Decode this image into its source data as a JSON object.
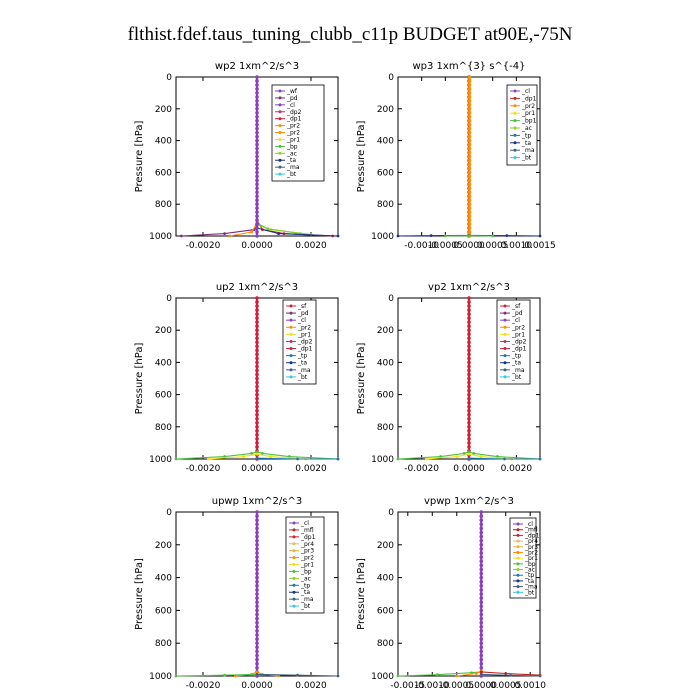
{
  "figure_title": "flthist.fdef.taus_tuning_clubb_c11p  BUDGET at90E,-75N",
  "colors": {
    "_wf": "#8a3fbf",
    "_pd": "#7a2f7a",
    "_cl": "#8a3fbf",
    "_dp2": "#c0306a",
    "_dp1": "#d0203a",
    "_pr2": "#ff8c00",
    "_pr1": "#f0e020",
    "_pr3": "#e8b040",
    "_pr4": "#e0c060",
    "_mfl": "#c02020",
    "_bp": "#50c040",
    "_bp1": "#50c040",
    "_ac": "#90d020",
    "_tp": "#1f77b4",
    "_ta": "#1a2f8a",
    "_ma": "#406080",
    "_bt": "#3ec6e0",
    "_sf": "#d02040"
  },
  "chart_data": [
    {
      "type": "line",
      "title": "wp2   1xm^2/s^3",
      "ylabel": "Pressure  [hPa]",
      "xlim": [
        -0.003,
        0.003
      ],
      "ylim": [
        1000,
        0
      ],
      "xticks": [
        "-0.0020",
        "0.0000",
        "0.0020"
      ],
      "xtick_values": [
        -0.002,
        0.0,
        0.002
      ],
      "yticks": [
        "0",
        "200",
        "400",
        "600",
        "800",
        "1000"
      ],
      "legend": [
        "_wf",
        "_pd",
        "_cl",
        "_dp2",
        "_dp1",
        "_pr2",
        "_pr2",
        "_pr1",
        "_bp",
        "_ac",
        "_ta",
        "_ma",
        "_bt"
      ],
      "series": [
        {
          "name": "_pd",
          "x": [
            0,
            0,
            -0.0001,
            -0.0012,
            -0.0028
          ],
          "y": [
            0,
            900,
            960,
            985,
            1000
          ]
        },
        {
          "name": "_dp1",
          "x": [
            0,
            0,
            0.0002,
            0.001,
            0.0028
          ],
          "y": [
            0,
            900,
            960,
            985,
            1000
          ]
        },
        {
          "name": "_pr2",
          "x": [
            0,
            0,
            -0.0002,
            -0.001
          ],
          "y": [
            0,
            920,
            975,
            1000
          ]
        },
        {
          "name": "_bp",
          "x": [
            0,
            0,
            0.0004,
            0.0016
          ],
          "y": [
            0,
            920,
            955,
            985
          ]
        },
        {
          "name": "_ac",
          "x": [
            0,
            0,
            0.0005,
            0.002
          ],
          "y": [
            0,
            930,
            960,
            990
          ]
        },
        {
          "name": "_ta",
          "x": [
            0,
            0,
            0.0008,
            0.003
          ],
          "y": [
            0,
            950,
            985,
            1000
          ]
        },
        {
          "name": "_cl",
          "x": [
            0,
            0,
            0,
            0
          ],
          "y": [
            0,
            500,
            950,
            1000
          ]
        }
      ]
    },
    {
      "type": "line",
      "title": "wp3   1xm^{3} s^{-4}",
      "ylabel": "Pressure  [hPa]",
      "xlim": [
        -0.0015,
        0.0015
      ],
      "ylim": [
        1000,
        0
      ],
      "xticks": [
        "-0.0010",
        "-0.0005",
        "0.0000",
        "0.0005",
        "0.0010",
        "0.0015"
      ],
      "xtick_values": [
        -0.001,
        -0.0005,
        0.0,
        0.0005,
        0.001,
        0.0015
      ],
      "yticks": [
        "0",
        "200",
        "400",
        "600",
        "800",
        "1000"
      ],
      "legend": [
        "_cl",
        "_dp1",
        "_pr2",
        "_pr1",
        "_bp1",
        "_ac",
        "_tp",
        "_ta",
        "_ma",
        "_bt"
      ],
      "series": [
        {
          "name": "_dp1",
          "x": [
            0,
            0,
            0
          ],
          "y": [
            0,
            500,
            990
          ]
        },
        {
          "name": "_pr2",
          "x": [
            1e-05,
            1e-05,
            1e-05
          ],
          "y": [
            0,
            500,
            990
          ]
        },
        {
          "name": "_ta",
          "x": [
            -0.0015,
            -0.0008,
            0,
            0.0008,
            0.0015
          ],
          "y": [
            1000,
            998,
            996,
            998,
            1000
          ]
        },
        {
          "name": "_bp1",
          "x": [
            -0.0005,
            0,
            0.0005
          ],
          "y": [
            1000,
            998,
            1000
          ]
        }
      ]
    },
    {
      "type": "line",
      "title": "up2   1xm^2/s^3",
      "ylabel": "Pressure  [hPa]",
      "xlim": [
        -0.003,
        0.003
      ],
      "ylim": [
        1000,
        0
      ],
      "xticks": [
        "-0.0020",
        "0.0000",
        "0.0020"
      ],
      "xtick_values": [
        -0.002,
        0.0,
        0.002
      ],
      "yticks": [
        "0",
        "200",
        "400",
        "600",
        "800",
        "1000"
      ],
      "legend": [
        "_sf",
        "_pd",
        "_cl",
        "_pr2",
        "_pr1",
        "_dp2",
        "_dp1",
        "_tp",
        "_ta",
        "_ma",
        "_bt"
      ],
      "series": [
        {
          "name": "_dp1",
          "x": [
            0,
            0,
            0
          ],
          "y": [
            0,
            500,
            1000
          ]
        },
        {
          "name": "_bp",
          "x": [
            -0.003,
            -0.0012,
            -0.0002,
            0,
            0.0002,
            0.0012,
            0.003
          ],
          "y": [
            1000,
            985,
            965,
            955,
            965,
            985,
            1000
          ]
        },
        {
          "name": "_pr1",
          "x": [
            -0.0018,
            -0.0005,
            0,
            0.0005,
            0.0018
          ],
          "y": [
            1000,
            985,
            970,
            985,
            1000
          ]
        },
        {
          "name": "_tp",
          "x": [
            0,
            0.0015,
            0.003
          ],
          "y": [
            995,
            1000,
            1000
          ]
        }
      ]
    },
    {
      "type": "line",
      "title": "vp2   1xm^2/s^3",
      "ylabel": "Pressure  [hPa]",
      "xlim": [
        -0.003,
        0.003
      ],
      "ylim": [
        1000,
        0
      ],
      "xticks": [
        "-0.0020",
        "0.0000",
        "0.0020"
      ],
      "xtick_values": [
        -0.002,
        0.0,
        0.002
      ],
      "yticks": [
        "0",
        "200",
        "400",
        "600",
        "800",
        "1000"
      ],
      "legend": [
        "_sf",
        "_pd",
        "_cl",
        "_pr2",
        "_pr1",
        "_dp2",
        "_dp1",
        "_tp",
        "_ta",
        "_ma",
        "_bt"
      ],
      "series": [
        {
          "name": "_dp1",
          "x": [
            0,
            0,
            0
          ],
          "y": [
            0,
            500,
            1000
          ]
        },
        {
          "name": "_bp",
          "x": [
            -0.003,
            -0.0012,
            -0.0002,
            0,
            0.0002,
            0.0012,
            0.003
          ],
          "y": [
            1000,
            985,
            965,
            955,
            965,
            985,
            1000
          ]
        },
        {
          "name": "_pr1",
          "x": [
            -0.0018,
            -0.0005,
            0,
            0.0005,
            0.0018
          ],
          "y": [
            1000,
            985,
            970,
            985,
            1000
          ]
        },
        {
          "name": "_tp",
          "x": [
            0,
            0.0015,
            0.003
          ],
          "y": [
            995,
            1000,
            1000
          ]
        }
      ]
    },
    {
      "type": "line",
      "title": "upwp   1xm^2/s^3",
      "ylabel": "Pressure  [hPa]",
      "xlim": [
        -0.003,
        0.003
      ],
      "ylim": [
        1000,
        0
      ],
      "xticks": [
        "-0.0020",
        "0.0000",
        "0.0020"
      ],
      "xtick_values": [
        -0.002,
        0.0,
        0.002
      ],
      "yticks": [
        "0",
        "200",
        "400",
        "600",
        "800",
        "1000"
      ],
      "legend": [
        "_cl",
        "_mfl",
        "_dp1",
        "_pr4",
        "_pr3",
        "_pr2",
        "_pr1",
        "_bp",
        "_ac",
        "_tp",
        "_ta",
        "_ma",
        "_bt"
      ],
      "series": [
        {
          "name": "_cl",
          "x": [
            0,
            0,
            0
          ],
          "y": [
            0,
            500,
            1000
          ]
        },
        {
          "name": "_pr2",
          "x": [
            -0.0008,
            -0.0002,
            0,
            0.0002,
            0.0008
          ],
          "y": [
            1000,
            990,
            975,
            990,
            1000
          ]
        },
        {
          "name": "_bp",
          "x": [
            -0.003,
            -0.0012,
            0
          ],
          "y": [
            1000,
            995,
            990
          ]
        },
        {
          "name": "_ma",
          "x": [
            0,
            0.0015,
            0.003
          ],
          "y": [
            990,
            995,
            1000
          ]
        }
      ]
    },
    {
      "type": "line",
      "title": "vpwp   1xm^2/s^3",
      "ylabel": "Pressure  [hPa]",
      "xlim": [
        -0.0017,
        0.0012
      ],
      "ylim": [
        1000,
        0
      ],
      "xticks": [
        "-0.0015",
        "-0.0010",
        "-0.0005",
        "0.0000",
        "0.0005",
        "0.0010"
      ],
      "xtick_values": [
        -0.0015,
        -0.001,
        -0.0005,
        0.0,
        0.0005,
        0.001
      ],
      "yticks": [
        "0",
        "200",
        "400",
        "600",
        "800",
        "1000"
      ],
      "legend": [
        "_cl",
        "_mfl",
        "_dp1",
        "_pr4",
        "_pr3",
        "_pr2",
        "_pr1",
        "_bp",
        "_ac",
        "_tp",
        "_ta",
        "_ma",
        "_bt"
      ],
      "series": [
        {
          "name": "_cl",
          "x": [
            0,
            0,
            0
          ],
          "y": [
            0,
            500,
            1000
          ]
        },
        {
          "name": "_bp",
          "x": [
            -0.0017,
            -0.0009,
            -0.0002,
            0
          ],
          "y": [
            1000,
            992,
            980,
            975
          ]
        },
        {
          "name": "_pr2",
          "x": [
            -0.0005,
            -0.0001,
            0
          ],
          "y": [
            1000,
            985,
            970
          ]
        },
        {
          "name": "_mfl",
          "x": [
            0,
            0.0005,
            0.0012
          ],
          "y": [
            975,
            985,
            995
          ]
        },
        {
          "name": "_ma",
          "x": [
            0,
            0.0006,
            0.0012
          ],
          "y": [
            990,
            996,
            1000
          ]
        }
      ]
    }
  ]
}
